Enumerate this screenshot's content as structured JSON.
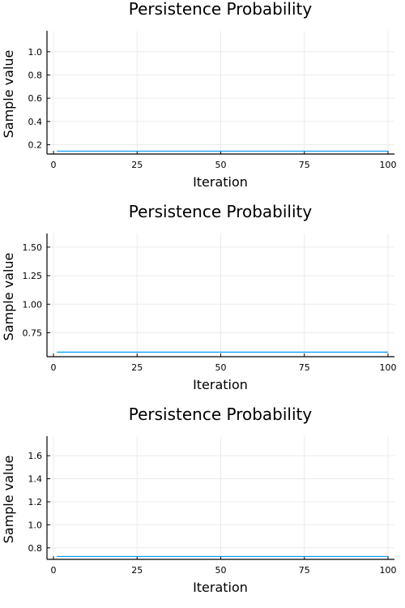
{
  "chart_data": [
    {
      "type": "line",
      "title": "Persistence Probability",
      "xlabel": "Iteration",
      "ylabel": "Sample value",
      "xlim": [
        0,
        100
      ],
      "ylim": [
        0.12,
        1.18
      ],
      "xticks": [
        0,
        25,
        50,
        75,
        100
      ],
      "yticks": [
        0.2,
        0.4,
        0.6,
        0.8,
        1.0
      ],
      "ytick_labels": [
        "0.2",
        "0.4",
        "0.6",
        "0.8",
        "1.0"
      ],
      "grid": true,
      "legend": "none",
      "series": [
        {
          "color": "#009af9",
          "x": [
            1,
            100
          ],
          "y": [
            0.145,
            0.145
          ]
        }
      ]
    },
    {
      "type": "line",
      "title": "Persistence Probability",
      "xlabel": "Iteration",
      "ylabel": "Sample value",
      "xlim": [
        0,
        100
      ],
      "ylim": [
        0.54,
        1.62
      ],
      "xticks": [
        0,
        25,
        50,
        75,
        100
      ],
      "yticks": [
        0.75,
        1.0,
        1.25,
        1.5
      ],
      "ytick_labels": [
        "0.75",
        "1.00",
        "1.25",
        "1.50"
      ],
      "grid": true,
      "legend": "none",
      "series": [
        {
          "color": "#009af9",
          "x": [
            1,
            100
          ],
          "y": [
            0.58,
            0.58
          ]
        }
      ]
    },
    {
      "type": "line",
      "title": "Persistence Probability",
      "xlabel": "Iteration",
      "ylabel": "Sample value",
      "xlim": [
        0,
        100
      ],
      "ylim": [
        0.7,
        1.77
      ],
      "xticks": [
        0,
        25,
        50,
        75,
        100
      ],
      "yticks": [
        0.8,
        1.0,
        1.2,
        1.4,
        1.6
      ],
      "ytick_labels": [
        "0.8",
        "1.0",
        "1.2",
        "1.4",
        "1.6"
      ],
      "grid": true,
      "legend": "none",
      "series": [
        {
          "color": "#009af9",
          "x": [
            1,
            100
          ],
          "y": [
            0.725,
            0.725
          ]
        }
      ]
    }
  ]
}
